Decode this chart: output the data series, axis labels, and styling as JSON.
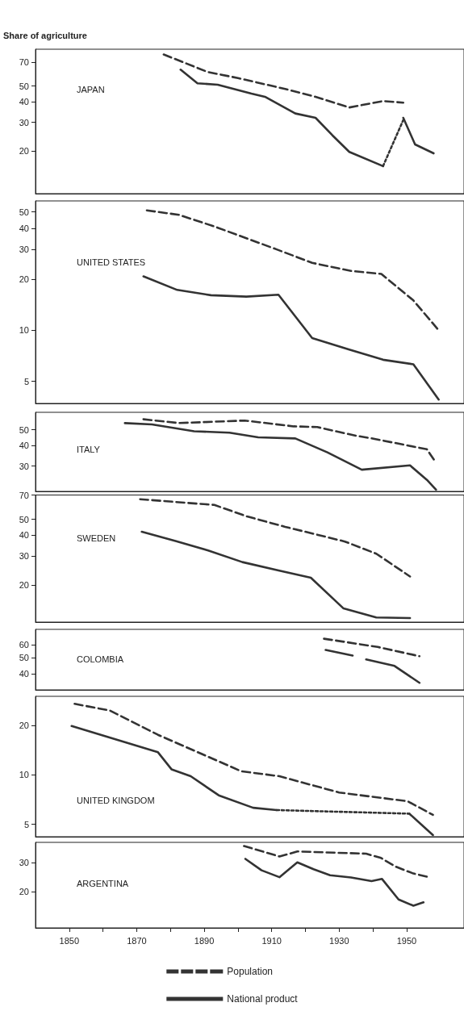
{
  "chart_data": [
    {
      "type": "line",
      "title": "JAPAN",
      "ylabel": "Share of agriculture",
      "log": true,
      "tick_labels": "y",
      "xlim": [
        1840,
        1967
      ],
      "ylim": [
        11,
        84
      ],
      "yticks": [
        20,
        30,
        40,
        50,
        70
      ],
      "series": [
        {
          "color": "#333333",
          "line_style": "dashed",
          "x": [
            1878,
            1891,
            1900,
            1914,
            1923,
            1933,
            1943,
            1949
          ],
          "values": [
            78,
            61,
            56,
            48,
            43,
            37,
            40.5,
            39.6
          ]
        },
        {
          "color": "#333333",
          "line_style": "solid",
          "x": [
            1883,
            1888,
            1894,
            1904,
            1908,
            1917,
            1923,
            1928,
            1933,
            1943
          ],
          "values": [
            63,
            52,
            51,
            45,
            43,
            34,
            32,
            25,
            19.8,
            16.2
          ]
        },
        {
          "color": "#333333",
          "line_style": "dotted",
          "x": [
            1943,
            1949
          ],
          "values": [
            16.2,
            31
          ]
        },
        {
          "color": "#333333",
          "line_style": "solid",
          "x": [
            1949,
            1952.5,
            1958
          ],
          "values": [
            32,
            22,
            19.4
          ]
        }
      ]
    },
    {
      "type": "line",
      "title": "UNITED STATES",
      "log": true,
      "tick_labels": "y",
      "xlim": [
        1840,
        1967
      ],
      "ylim": [
        3.7,
        58
      ],
      "yticks": [
        5,
        10,
        20,
        30,
        40,
        50
      ],
      "series": [
        {
          "color": "#333333",
          "line_style": "dashed",
          "x": [
            1873,
            1882.5,
            1893,
            1911.5,
            1922,
            1933.5,
            1942.5,
            1952,
            1959.5
          ],
          "values": [
            51,
            48,
            41,
            30,
            25,
            22.4,
            21.5,
            15,
            10
          ]
        },
        {
          "color": "#333333",
          "line_style": "solid",
          "x": [
            1872,
            1882,
            1892,
            1902.5,
            1912,
            1922,
            1933,
            1943,
            1952,
            1959.5
          ],
          "values": [
            20.8,
            17.3,
            16.1,
            15.8,
            16.2,
            9,
            7.7,
            6.7,
            6.3,
            3.9
          ]
        }
      ]
    },
    {
      "type": "line",
      "title": "ITALY",
      "log": true,
      "tick_labels": "y",
      "xlim": [
        1840,
        1967
      ],
      "ylim": [
        21,
        64
      ],
      "yticks": [
        30,
        40,
        50
      ],
      "series": [
        {
          "color": "#333333",
          "line_style": "dashed",
          "x": [
            1872,
            1882.5,
            1902,
            1916.5,
            1923.5,
            1935,
            1940.5,
            1956,
            1958.7
          ],
          "values": [
            58,
            55,
            57,
            52.5,
            52,
            46,
            44,
            38,
            31.5
          ]
        },
        {
          "color": "#333333",
          "line_style": "solid",
          "x": [
            1866.5,
            1874.5,
            1887,
            1897.5,
            1906,
            1917,
            1926.5,
            1936.7,
            1951,
            1956,
            1958.7
          ],
          "values": [
            55,
            54,
            49,
            48,
            45,
            44.3,
            36.4,
            28.5,
            30.3,
            24.7,
            21.5
          ]
        }
      ]
    },
    {
      "type": "line",
      "title": "SWEDEN",
      "log": true,
      "tick_labels": "y",
      "xlim": [
        1840,
        1967
      ],
      "ylim": [
        12,
        70
      ],
      "yticks": [
        20,
        30,
        40,
        50,
        70
      ],
      "series": [
        {
          "color": "#333333",
          "line_style": "dashed",
          "x": [
            1871,
            1893,
            1902.7,
            1914,
            1923,
            1931.7,
            1941,
            1951
          ],
          "values": [
            66,
            61,
            52,
            45,
            40.6,
            36.7,
            31,
            22.6
          ]
        },
        {
          "color": "#333333",
          "line_style": "solid",
          "x": [
            1871.5,
            1881.5,
            1891,
            1901.3,
            1912.3,
            1921.6,
            1931.3,
            1941,
            1951
          ],
          "values": [
            42,
            37,
            32.5,
            27.6,
            24.5,
            22.2,
            14.5,
            12.8,
            12.7
          ]
        }
      ]
    },
    {
      "type": "line",
      "title": "COLOMBIA",
      "log": true,
      "tick_labels": "y",
      "xlim": [
        1840,
        1967
      ],
      "ylim": [
        32,
        74
      ],
      "yticks": [
        40,
        50,
        60
      ],
      "series": [
        {
          "color": "#333333",
          "line_style": "dashed",
          "x": [
            1925.5,
            1941.4,
            1953.8
          ],
          "values": [
            65,
            58,
            51
          ]
        },
        {
          "color": "#333333",
          "line_style": "solid",
          "x": [
            1926,
            1934,
            1936,
            1938,
            1946.4,
            1953.8
          ],
          "values": [
            55.6,
            51.5,
            null,
            48.8,
            44.6,
            35.3
          ]
        }
      ]
    },
    {
      "type": "line",
      "title": "UNITED KINGDOM",
      "log": true,
      "tick_labels": "y",
      "xlim": [
        1840,
        1967
      ],
      "ylim": [
        4.2,
        30
      ],
      "yticks": [
        5,
        10,
        20
      ],
      "series": [
        {
          "color": "#333333",
          "line_style": "dashed",
          "x": [
            1851.6,
            1862,
            1876.3,
            1901,
            1912.3,
            1930,
            1950.3,
            1957.8
          ],
          "values": [
            27,
            24.6,
            17.5,
            10.5,
            9.8,
            7.8,
            6.9,
            5.7
          ]
        },
        {
          "color": "#333333",
          "line_style": "solid",
          "x": [
            1850.7,
            1876.3,
            1880.3,
            1886,
            1894.3,
            1904.5,
            1911.5
          ],
          "values": [
            19.8,
            13.7,
            10.8,
            9.8,
            7.5,
            6.3,
            6.1
          ]
        },
        {
          "color": "#333333",
          "line_style": "dotted",
          "x": [
            1911.5,
            1950.8
          ],
          "values": [
            6.1,
            5.8
          ]
        },
        {
          "color": "#333333",
          "line_style": "solid",
          "x": [
            1950.8,
            1957.8
          ],
          "values": [
            5.8,
            4.3
          ]
        }
      ]
    },
    {
      "type": "line",
      "title": "ARGENTINA",
      "log": true,
      "legend": "bottom",
      "xlim": [
        1840,
        1967
      ],
      "xticks": [
        1850,
        {
          "value": 1860,
          "label": null
        },
        1870,
        {
          "value": 1880,
          "label": null
        },
        1890,
        {
          "value": 1900,
          "label": null
        },
        1910,
        {
          "value": 1920,
          "label": null
        },
        1930,
        {
          "value": 1940,
          "label": null
        },
        1950
      ],
      "ylim": [
        12,
        40
      ],
      "yticks": [
        20,
        30
      ],
      "series": [
        {
          "name": "Population",
          "color": "#333333",
          "line_style": "dashed",
          "x": [
            1901.8,
            1912.3,
            1917.6,
            1938,
            1942.4,
            1946.8,
            1952,
            1956.4
          ],
          "values": [
            38,
            32.8,
            35.2,
            34.1,
            32.1,
            28.4,
            25.8,
            24.6
          ]
        },
        {
          "name": "National product",
          "color": "#333333",
          "line_style": "solid",
          "x": [
            1902.2,
            1907,
            1912.3,
            1917.6,
            1922.4,
            1927.3,
            1933.5,
            1939.6,
            1942.7,
            1947.6,
            1952,
            1955
          ],
          "values": [
            31.7,
            27,
            24.5,
            30.2,
            27.4,
            25.2,
            24.4,
            23.2,
            23.9,
            17.9,
            16.4,
            17.2
          ]
        }
      ]
    }
  ]
}
